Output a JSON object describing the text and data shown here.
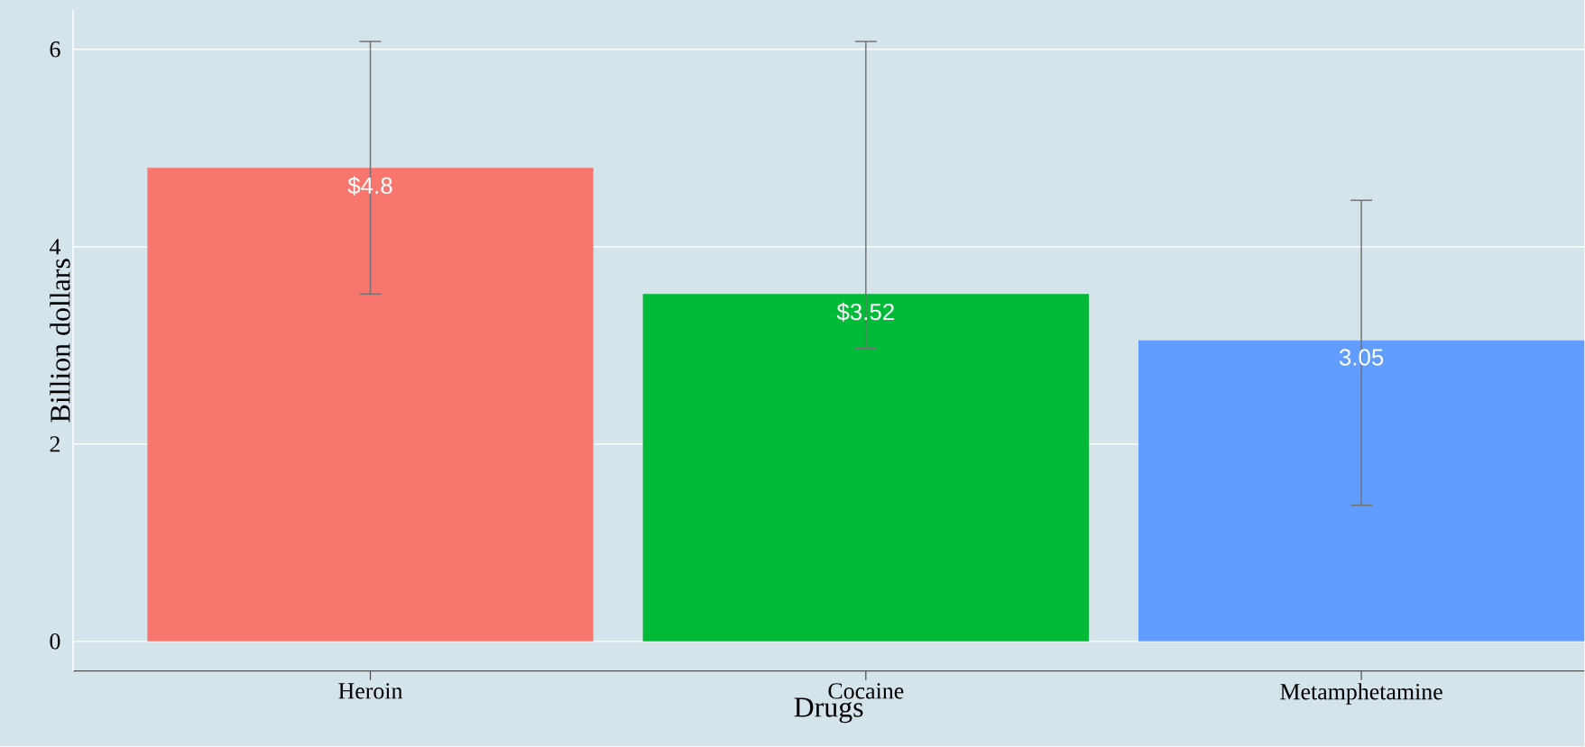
{
  "chart_data": {
    "type": "bar",
    "xlabel": "Drugs",
    "ylabel": "Billion dollars",
    "categories": [
      "Heroin",
      "Cocaine",
      "Metamphetamine"
    ],
    "values": [
      4.8,
      3.52,
      3.05
    ],
    "colors": [
      "#f8766d",
      "#00ba38",
      "#619cff"
    ],
    "value_labels": [
      "$4.8",
      "$3.52",
      "3.05"
    ],
    "errors": [
      [
        3.52,
        6.08
      ],
      [
        2.97,
        6.08
      ],
      [
        1.38,
        4.47
      ]
    ],
    "ylim": [
      -0.3,
      6.4
    ],
    "yticks": [
      0,
      2,
      4,
      6
    ],
    "grid": "y"
  }
}
